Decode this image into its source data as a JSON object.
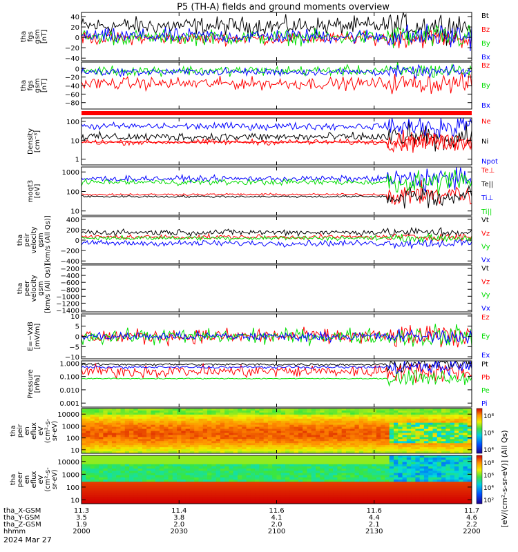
{
  "title": "P5 (TH-A) fields and ground moments overview",
  "date_label": "2024 Mar 27",
  "colors": {
    "black": "#000000",
    "red": "#ff0000",
    "green": "#00dd00",
    "blue": "#0000ff"
  },
  "chart_data": [
    {
      "type": "line",
      "ylabel": [
        "tha",
        "fgs",
        "gsm",
        "[nT]"
      ],
      "ylim": [
        -45,
        48
      ],
      "log": false,
      "ticks": [
        "40",
        "20",
        "0",
        "−20",
        "−40"
      ],
      "tick_values": [
        40,
        20,
        0,
        -20,
        -40
      ],
      "series": [
        {
          "name": "Bt",
          "color": "black",
          "base": 22,
          "amp": 12
        },
        {
          "name": "Bz",
          "color": "red",
          "base": -2,
          "amp": 8
        },
        {
          "name": "By",
          "color": "green",
          "base": 0,
          "amp": 10
        },
        {
          "name": "Bx",
          "color": "blue",
          "base": 2,
          "amp": 10
        }
      ]
    },
    {
      "type": "line",
      "ylabel": [
        "tha",
        "fgs",
        "gsm",
        "[nT]"
      ],
      "ylim": [
        -95,
        15
      ],
      "log": false,
      "ticks": [
        "0",
        "−20",
        "−40",
        "−60",
        "−80"
      ],
      "tick_values": [
        0,
        -20,
        -40,
        -60,
        -80
      ],
      "series": [
        {
          "name": "Bz",
          "color": "red",
          "base": -35,
          "amp": 10
        },
        {
          "name": "By",
          "color": "green",
          "base": -5,
          "amp": 8
        },
        {
          "name": "Bx",
          "color": "blue",
          "base": -8,
          "amp": 6
        }
      ]
    },
    {
      "type": "line",
      "ylabel": [
        "Density",
        "[cm⁻³]"
      ],
      "ylim": [
        0.5,
        150
      ],
      "log": true,
      "ticks": [
        "100",
        "10",
        "1"
      ],
      "tick_values": [
        100,
        10,
        1
      ],
      "series": [
        {
          "name": "Ne",
          "color": "red",
          "base": 8,
          "amp": 0.08
        },
        {
          "name": "Ni",
          "color": "black",
          "base": 15,
          "amp": 0.12
        },
        {
          "name": "Npot",
          "color": "blue",
          "base": 55,
          "amp": 0.1
        },
        {
          "name": "",
          "color": "red",
          "base": 8,
          "amp": 0.02
        }
      ]
    },
    {
      "type": "line",
      "ylabel": [
        "moqt3",
        "[eV]"
      ],
      "ylim": [
        6,
        1800
      ],
      "log": true,
      "ticks": [
        "1000",
        "100",
        "10"
      ],
      "tick_values": [
        1000,
        100,
        10
      ],
      "series": [
        {
          "name": "Te⊥",
          "color": "red",
          "base": 70,
          "amp": 0.03
        },
        {
          "name": "Te||",
          "color": "black",
          "base": 55,
          "amp": 0.03
        },
        {
          "name": "Ti⊥",
          "color": "blue",
          "base": 450,
          "amp": 0.08
        },
        {
          "name": "Ti||",
          "color": "green",
          "base": 300,
          "amp": 0.08
        }
      ]
    },
    {
      "type": "line",
      "ylabel": [
        "tha",
        "peir",
        "velocity",
        "gsm",
        "[km/s (All Qs)]"
      ],
      "ylim": [
        -450,
        450
      ],
      "log": false,
      "ticks": [
        "400",
        "200",
        "0",
        "−200",
        "−400"
      ],
      "tick_values": [
        400,
        200,
        0,
        -200,
        -400
      ],
      "series": [
        {
          "name": "Vt",
          "color": "black",
          "base": 150,
          "amp": 40
        },
        {
          "name": "Vz",
          "color": "red",
          "base": 60,
          "amp": 30
        },
        {
          "name": "Vy",
          "color": "green",
          "base": 40,
          "amp": 30
        },
        {
          "name": "Vx",
          "color": "blue",
          "base": -60,
          "amp": 40
        }
      ]
    },
    {
      "type": "line",
      "ylabel": [
        "tha",
        "peer",
        "velocity",
        "gsm",
        "[km/s (All Qs)]"
      ],
      "ylim": [
        -1450,
        -100
      ],
      "log": false,
      "ticks": [
        "−200",
        "−400",
        "−600",
        "−800",
        "−1000",
        "−1200",
        "−1400"
      ],
      "tick_values": [
        -200,
        -400,
        -600,
        -800,
        -1000,
        -1200,
        -1400
      ],
      "series": [
        {
          "name": "Vt",
          "color": "black"
        },
        {
          "name": "Vz",
          "color": "red"
        },
        {
          "name": "Vy",
          "color": "green"
        },
        {
          "name": "Vx",
          "color": "blue"
        }
      ]
    },
    {
      "type": "line",
      "ylabel": [
        "E=−VxB",
        "[mV/m]"
      ],
      "ylim": [
        -11,
        11
      ],
      "log": false,
      "ticks": [
        "10",
        "5",
        "0",
        "−5",
        "−10"
      ],
      "tick_values": [
        10,
        5,
        0,
        -5,
        -10
      ],
      "series": [
        {
          "name": "Ez",
          "color": "red",
          "base": 0,
          "amp": 2.5
        },
        {
          "name": "Ey",
          "color": "green",
          "base": 0,
          "amp": 2.5
        },
        {
          "name": "Ex",
          "color": "blue",
          "base": 0,
          "amp": 1.5
        }
      ]
    },
    {
      "type": "line",
      "ylabel": [
        "Pressure",
        "[nPa]"
      ],
      "ylim": [
        0.0005,
        1.5
      ],
      "log": true,
      "ticks": [
        "1.000",
        "0.100",
        "0.010",
        "0.001"
      ],
      "tick_values": [
        1,
        0.1,
        0.01,
        0.001
      ],
      "series": [
        {
          "name": "Pt",
          "color": "black",
          "base": 0.8,
          "amp": 0.05
        },
        {
          "name": "Pb",
          "color": "red",
          "base": 0.25,
          "amp": 0.25
        },
        {
          "name": "Pe",
          "color": "green",
          "base": 0.07,
          "amp": 0.02
        },
        {
          "name": "Pi",
          "color": "blue",
          "base": 0.5,
          "amp": 0.05
        }
      ]
    },
    {
      "type": "heatmap",
      "ylabel": [
        "tha",
        "peir",
        "en",
        "eflux",
        "eV",
        "(cm²-s-",
        "sr-eV)"
      ],
      "ylim": [
        5,
        30000
      ],
      "log": true,
      "ticks": [
        "10000",
        "1000",
        "100",
        "10"
      ],
      "tick_values": [
        10000,
        1000,
        100,
        10
      ]
    },
    {
      "type": "heatmap",
      "ylabel": [
        "tha",
        "peer",
        "en",
        "eflux",
        "eV",
        "(cm²-s-",
        "sr-eV)"
      ],
      "ylim": [
        5,
        30000
      ],
      "log": true,
      "ticks": [
        "10000",
        "1000",
        "100",
        "10"
      ],
      "tick_values": [
        10000,
        1000,
        100,
        10
      ]
    }
  ],
  "colorbars": [
    {
      "ticks": [
        "10⁸",
        "10⁶",
        "10⁴"
      ]
    },
    {
      "ticks": [
        "10⁸",
        "10⁶",
        "10⁴",
        "10²"
      ]
    }
  ],
  "colorbar_label": "[eV/(cm²-s-sr-eV)] (All Qs)",
  "x_axis": {
    "row_labels": [
      "tha_X-GSM",
      "tha_Y-GSM",
      "tha_Z-GSM",
      "hhmm"
    ],
    "columns": [
      [
        "11.3",
        "3.5",
        "1.9",
        "2000"
      ],
      [
        "11.4",
        "3.8",
        "2.0",
        "2030"
      ],
      [
        "11.6",
        "4.1",
        "2.0",
        "2100"
      ],
      [
        "11.6",
        "4.4",
        "2.1",
        "2130"
      ],
      [
        "11.7",
        "4.6",
        "2.2",
        "2200"
      ]
    ]
  }
}
